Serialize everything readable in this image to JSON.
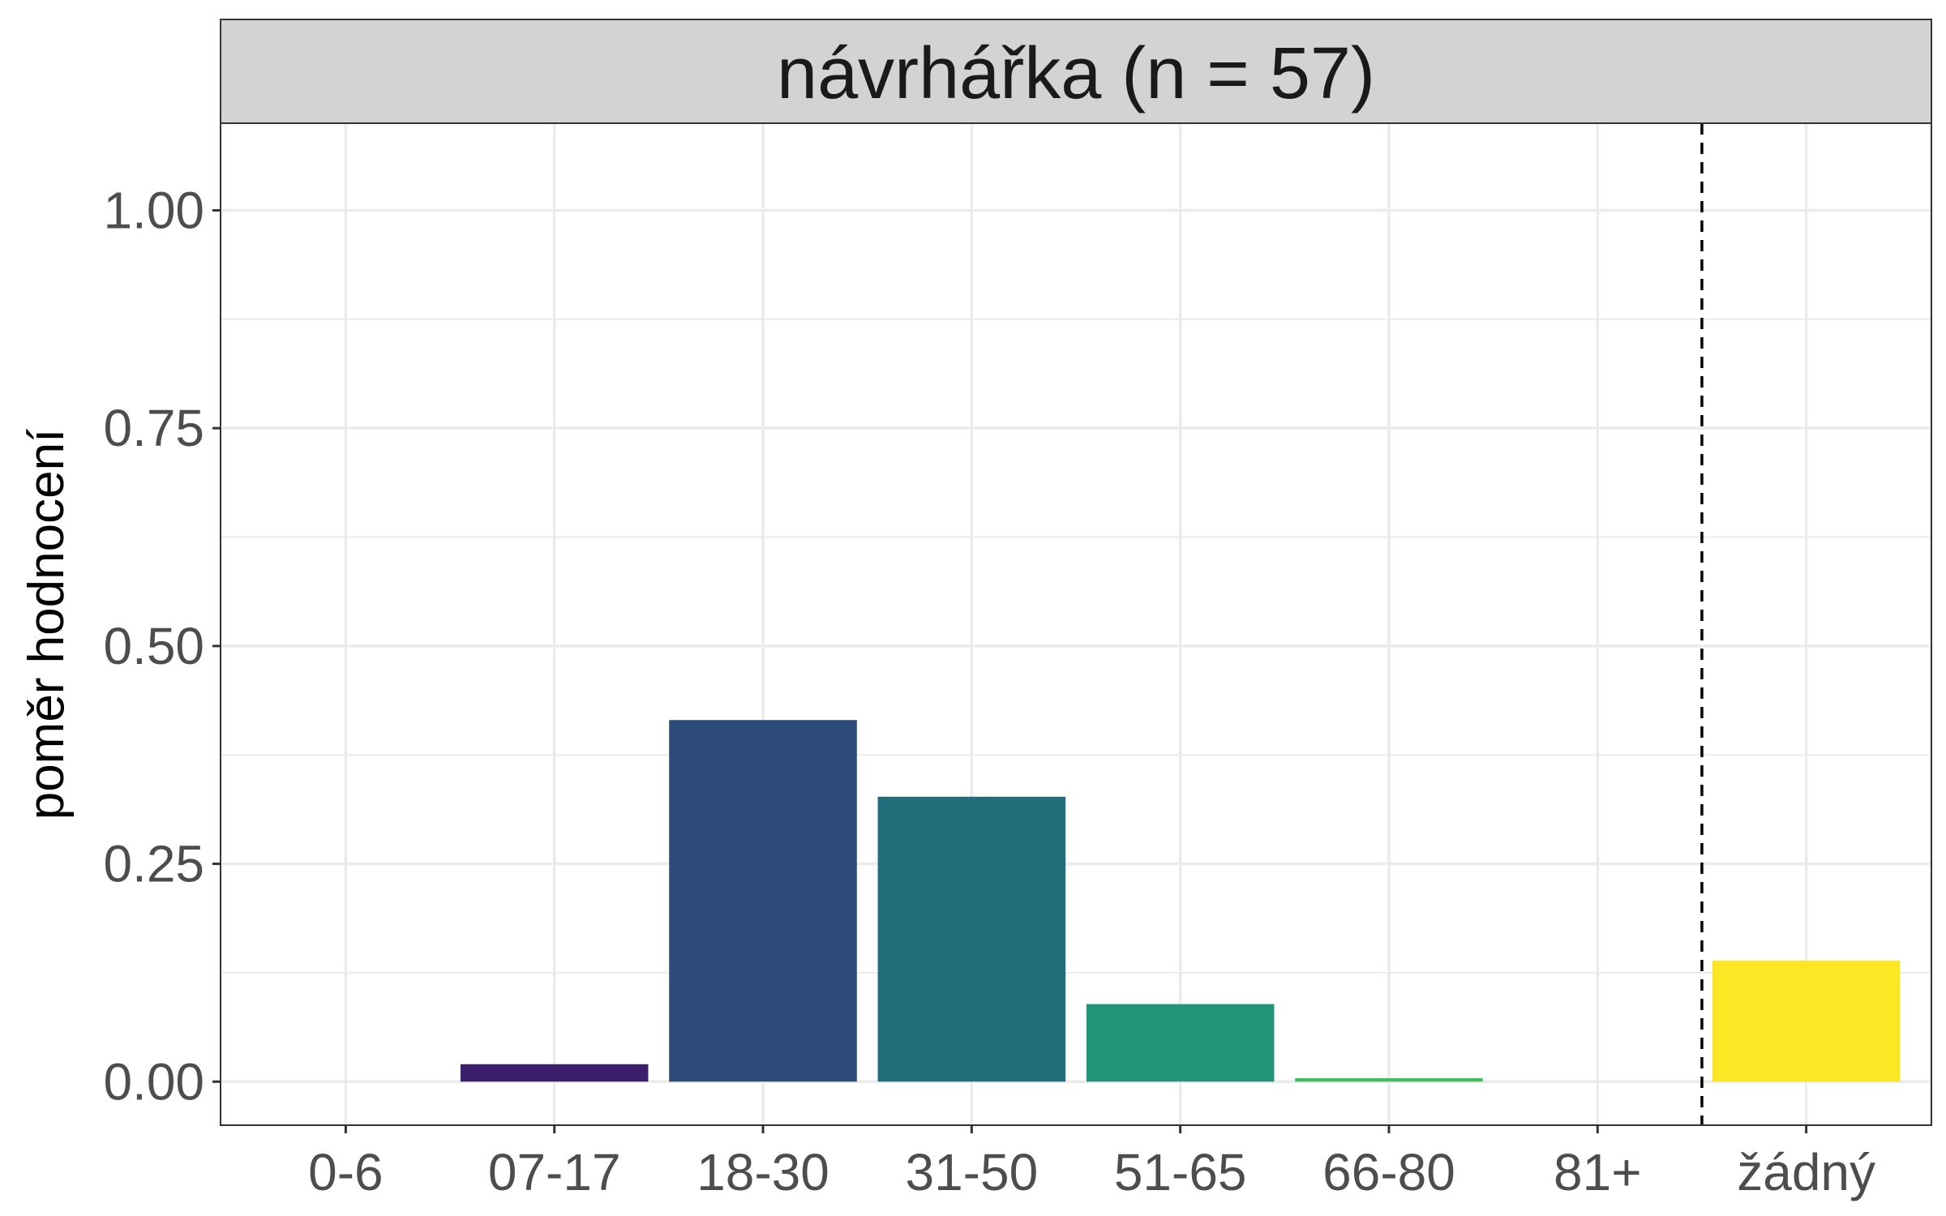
{
  "chart_data": {
    "type": "bar",
    "title": "návrhářka (n = 57)",
    "xlabel": "",
    "ylabel": "poměr hodnocení",
    "categories": [
      "0-6",
      "07-17",
      "18-30",
      "31-50",
      "51-65",
      "66-80",
      "81+",
      "žádný"
    ],
    "values": [
      0.0,
      0.02,
      0.415,
      0.327,
      0.089,
      0.004,
      0.0,
      0.139
    ],
    "colors": [
      "#440154",
      "#3B1F6B",
      "#2C4A7A",
      "#216E7A",
      "#21957A",
      "#3FBE5F",
      "#9BD93C",
      "#FDE725"
    ],
    "ylim": [
      -0.05,
      1.1
    ],
    "yticks": [
      "0.00",
      "0.25",
      "0.50",
      "0.75",
      "1.00"
    ],
    "ytick_values": [
      0.0,
      0.25,
      0.5,
      0.75,
      1.0
    ],
    "grid": true,
    "separator_after_category": "81+",
    "separator_style": "dashed"
  }
}
